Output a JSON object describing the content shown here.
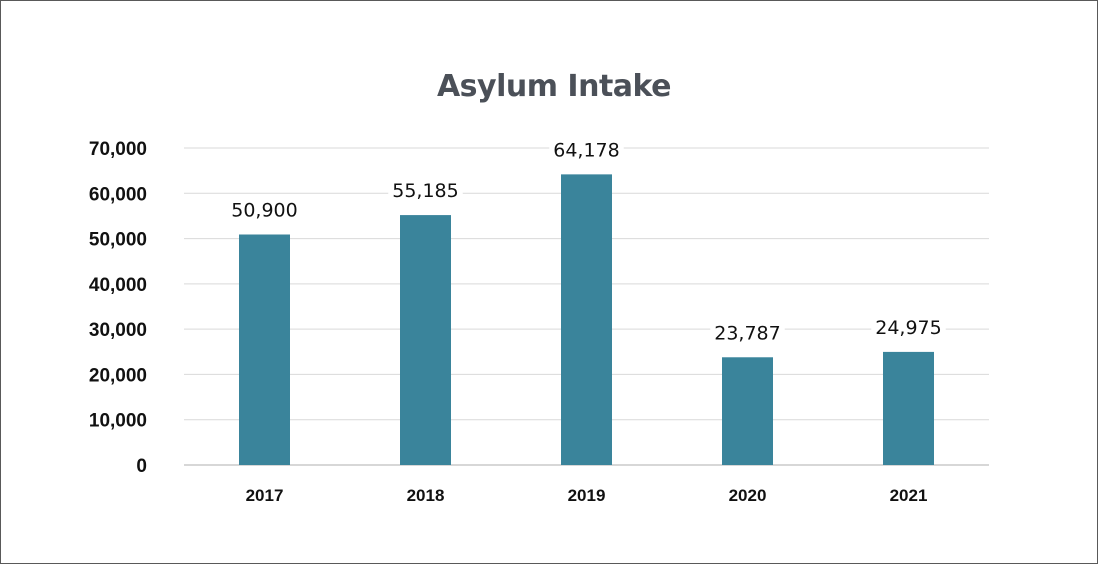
{
  "chart_data": {
    "type": "bar",
    "title": "Asylum Intake",
    "xlabel": "",
    "ylabel": "",
    "categories": [
      "2017",
      "2018",
      "2019",
      "2020",
      "2021"
    ],
    "values": [
      50900,
      55185,
      64178,
      23787,
      24975
    ],
    "data_labels": [
      "50,900",
      "55,185",
      "64,178",
      "23,787",
      "24,975"
    ],
    "ylim": [
      0,
      70000
    ],
    "yticks": [
      0,
      10000,
      20000,
      30000,
      40000,
      50000,
      60000,
      70000
    ],
    "ytick_labels": [
      "0",
      "10,000",
      "20,000",
      "30,000",
      "40,000",
      "50,000",
      "60,000",
      "70,000"
    ],
    "grid": true,
    "legend": "none",
    "colors": {
      "bar": "#3a849b",
      "grid": "#d9d9d9",
      "axis": "#bfbfbf",
      "title": "#4b5058",
      "frame": "#595959"
    }
  }
}
